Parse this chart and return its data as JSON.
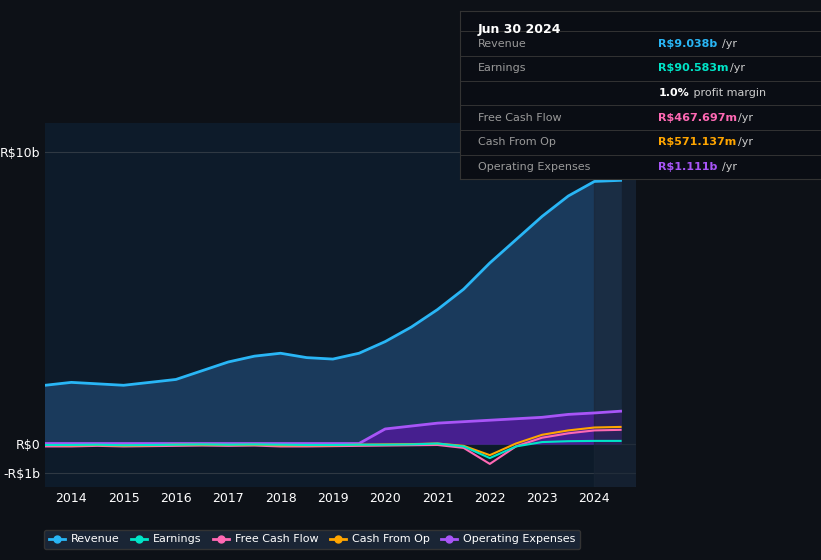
{
  "background_color": "#0d1117",
  "plot_bg_color": "#0d1b2a",
  "title_box": {
    "date": "Jun 30 2024",
    "rows": [
      {
        "label": "Revenue",
        "value": "R$9.038b",
        "value_color": "#38b6ff",
        "suffix": " /yr"
      },
      {
        "label": "Earnings",
        "value": "R$90.583m",
        "value_color": "#00e5c8",
        "suffix": " /yr"
      },
      {
        "label": "",
        "value": "1.0%",
        "value_color": "#ffffff",
        "suffix": " profit margin"
      },
      {
        "label": "Free Cash Flow",
        "value": "R$467.697m",
        "value_color": "#ff69b4",
        "suffix": " /yr"
      },
      {
        "label": "Cash From Op",
        "value": "R$571.137m",
        "value_color": "#ffa500",
        "suffix": " /yr"
      },
      {
        "label": "Operating Expenses",
        "value": "R$1.111b",
        "value_color": "#a855f7",
        "suffix": " /yr"
      }
    ]
  },
  "yticks_labels": [
    "R$10b",
    "R$0",
    "-R$1b"
  ],
  "yticks_values": [
    10,
    0,
    -1
  ],
  "xlim": [
    2013.5,
    2024.8
  ],
  "ylim": [
    -1.5,
    11.0
  ],
  "xtick_years": [
    2014,
    2015,
    2016,
    2017,
    2018,
    2019,
    2020,
    2021,
    2022,
    2023,
    2024
  ],
  "series": {
    "revenue": {
      "color": "#29b6f6",
      "fill_color": "#1a3a5c",
      "label": "Revenue",
      "x": [
        2013.5,
        2014.0,
        2014.5,
        2015.0,
        2015.5,
        2016.0,
        2016.5,
        2017.0,
        2017.5,
        2018.0,
        2018.5,
        2019.0,
        2019.5,
        2020.0,
        2020.5,
        2021.0,
        2021.5,
        2022.0,
        2022.5,
        2023.0,
        2023.5,
        2024.0,
        2024.5
      ],
      "y": [
        2.0,
        2.1,
        2.05,
        2.0,
        2.1,
        2.2,
        2.5,
        2.8,
        3.0,
        3.1,
        2.95,
        2.9,
        3.1,
        3.5,
        4.0,
        4.6,
        5.3,
        6.2,
        7.0,
        7.8,
        8.5,
        9.0,
        9.038
      ]
    },
    "earnings": {
      "color": "#00e5c8",
      "label": "Earnings",
      "x": [
        2013.5,
        2014.0,
        2014.5,
        2015.0,
        2015.5,
        2016.0,
        2016.5,
        2017.0,
        2017.5,
        2018.0,
        2018.5,
        2019.0,
        2019.5,
        2020.0,
        2020.5,
        2021.0,
        2021.5,
        2022.0,
        2022.5,
        2023.0,
        2023.5,
        2024.0,
        2024.5
      ],
      "y": [
        -0.05,
        -0.05,
        -0.04,
        -0.06,
        -0.05,
        -0.04,
        -0.03,
        -0.04,
        -0.03,
        -0.04,
        -0.05,
        -0.05,
        -0.04,
        -0.04,
        -0.03,
        0.0,
        -0.1,
        -0.5,
        -0.1,
        0.05,
        0.08,
        0.09,
        0.09
      ]
    },
    "free_cash_flow": {
      "color": "#ff69b4",
      "label": "Free Cash Flow",
      "x": [
        2013.5,
        2014.0,
        2014.5,
        2015.0,
        2015.5,
        2016.0,
        2016.5,
        2017.0,
        2017.5,
        2018.0,
        2018.5,
        2019.0,
        2019.5,
        2020.0,
        2020.5,
        2021.0,
        2021.5,
        2022.0,
        2022.5,
        2023.0,
        2023.5,
        2024.0,
        2024.5
      ],
      "y": [
        -0.1,
        -0.1,
        -0.08,
        -0.1,
        -0.09,
        -0.08,
        -0.07,
        -0.08,
        -0.07,
        -0.1,
        -0.1,
        -0.09,
        -0.08,
        -0.07,
        -0.06,
        -0.05,
        -0.15,
        -0.7,
        -0.1,
        0.2,
        0.35,
        0.45,
        0.47
      ]
    },
    "cash_from_op": {
      "color": "#ffa500",
      "label": "Cash From Op",
      "x": [
        2013.5,
        2014.0,
        2014.5,
        2015.0,
        2015.5,
        2016.0,
        2016.5,
        2017.0,
        2017.5,
        2018.0,
        2018.5,
        2019.0,
        2019.5,
        2020.0,
        2020.5,
        2021.0,
        2021.5,
        2022.0,
        2022.5,
        2023.0,
        2023.5,
        2024.0,
        2024.5
      ],
      "y": [
        -0.05,
        -0.06,
        -0.05,
        -0.07,
        -0.06,
        -0.04,
        -0.04,
        -0.05,
        -0.04,
        -0.06,
        -0.06,
        -0.06,
        -0.04,
        -0.03,
        -0.02,
        0.0,
        -0.08,
        -0.4,
        0.0,
        0.3,
        0.45,
        0.55,
        0.57
      ]
    },
    "operating_expenses": {
      "color": "#a855f7",
      "fill_color": "#4c1d95",
      "label": "Operating Expenses",
      "x": [
        2013.5,
        2014.0,
        2014.5,
        2015.0,
        2015.5,
        2016.0,
        2016.5,
        2017.0,
        2017.5,
        2018.0,
        2018.5,
        2019.0,
        2019.5,
        2020.0,
        2020.5,
        2021.0,
        2021.5,
        2022.0,
        2022.5,
        2023.0,
        2023.5,
        2024.0,
        2024.5
      ],
      "y": [
        0.0,
        0.0,
        0.0,
        0.0,
        0.0,
        0.0,
        0.0,
        0.0,
        0.0,
        0.0,
        0.0,
        0.0,
        0.0,
        0.5,
        0.6,
        0.7,
        0.75,
        0.8,
        0.85,
        0.9,
        1.0,
        1.05,
        1.11
      ]
    }
  },
  "legend": [
    {
      "label": "Revenue",
      "color": "#29b6f6"
    },
    {
      "label": "Earnings",
      "color": "#00e5c8"
    },
    {
      "label": "Free Cash Flow",
      "color": "#ff69b4"
    },
    {
      "label": "Cash From Op",
      "color": "#ffa500"
    },
    {
      "label": "Operating Expenses",
      "color": "#a855f7"
    }
  ]
}
